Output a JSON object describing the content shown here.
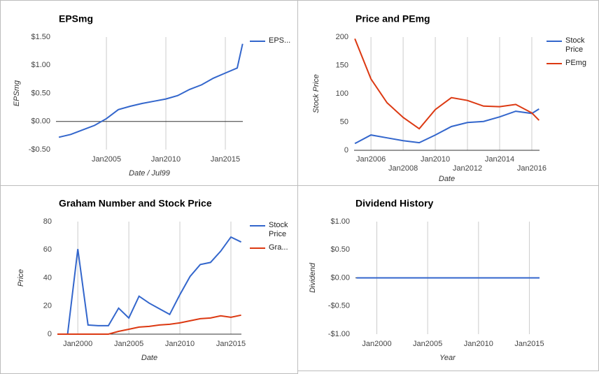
{
  "chart_data": [
    {
      "type": "line",
      "title": "EPSmg",
      "x_label": "Date / Jul99",
      "y_label": "EPSmg",
      "x": [
        2001,
        2002,
        2003,
        2004,
        2005,
        2006,
        2007,
        2008,
        2009,
        2010,
        2011,
        2012,
        2013,
        2014,
        2015,
        2016,
        2016.45
      ],
      "series": [
        {
          "name": "EPS...",
          "color": "#3366cc",
          "values": [
            -0.28,
            -0.23,
            -0.15,
            -0.07,
            0.05,
            0.21,
            0.27,
            0.32,
            0.36,
            0.4,
            0.46,
            0.57,
            0.65,
            0.77,
            0.86,
            0.95,
            1.38
          ]
        }
      ],
      "xlim": [
        2000.76,
        2016.47
      ],
      "ylim": [
        -0.5,
        1.5
      ],
      "xticks": [
        {
          "value": 2005,
          "label": "Jan2005"
        },
        {
          "value": 2010,
          "label": "Jan2010"
        },
        {
          "value": 2015,
          "label": "Jan2015"
        }
      ],
      "yticks": [
        {
          "value": 1.5,
          "label": "$1.50"
        },
        {
          "value": 1.0,
          "label": "$1.00"
        },
        {
          "value": 0.5,
          "label": "$0.50"
        },
        {
          "value": 0,
          "label": "$0.00"
        },
        {
          "value": -0.5,
          "label": "-$0.50"
        }
      ],
      "grid": true
    },
    {
      "type": "line",
      "title": "Price and PEmg",
      "x_label": "Date",
      "y_label": "Stock Price",
      "x": [
        2005,
        2006,
        2007,
        2008,
        2009,
        2010,
        2011,
        2012,
        2013,
        2014,
        2015,
        2016,
        2016.45
      ],
      "series": [
        {
          "name": "Stock Price",
          "color": "#3366cc",
          "values": [
            12,
            27,
            22,
            17,
            13.5,
            27,
            42,
            49,
            51,
            59,
            69,
            65,
            73
          ]
        },
        {
          "name": "PEmg",
          "color": "#dc3912",
          "values": [
            197,
            126,
            84,
            58,
            38,
            72,
            93,
            88,
            78,
            77,
            81,
            66,
            53
          ]
        }
      ],
      "xlim": [
        2004.95,
        2016.48
      ],
      "ylim": [
        0,
        200
      ],
      "xticks": [
        {
          "value": 2006,
          "label": "Jan2006"
        },
        {
          "value": 2008,
          "label": "Jan2008"
        },
        {
          "value": 2010,
          "label": "Jan2010"
        },
        {
          "value": 2012,
          "label": "Jan2012"
        },
        {
          "value": 2014,
          "label": "Jan2014"
        },
        {
          "value": 2016,
          "label": "Jan2016"
        }
      ],
      "yticks": [
        0,
        50,
        100,
        150,
        200
      ],
      "grid": true
    },
    {
      "type": "line",
      "title": "Graham Number and Stock Price",
      "x_label": "Date",
      "y_label": "Price",
      "x": [
        1998,
        1999,
        2000,
        2001,
        2002,
        2003,
        2004,
        2005,
        2006,
        2007,
        2008,
        2009,
        2010,
        2011,
        2012,
        2013,
        2014,
        2015,
        2016
      ],
      "series": [
        {
          "name": "Stock Price",
          "color": "#3366cc",
          "values": [
            0,
            0,
            60.5,
            6.5,
            6,
            6,
            18.5,
            11.5,
            27,
            22,
            18,
            14,
            28,
            41,
            49.5,
            51,
            59,
            69,
            65.5
          ]
        },
        {
          "name": "Gra...",
          "color": "#dc3912",
          "values": [
            0,
            0,
            0,
            0,
            0,
            0,
            2,
            3.5,
            5,
            5.5,
            6.5,
            7,
            8,
            9.5,
            11,
            11.5,
            13,
            12,
            13.5
          ]
        }
      ],
      "xlim": [
        1998,
        2016.03
      ],
      "ylim": [
        0,
        80
      ],
      "xticks": [
        {
          "value": 2000,
          "label": "Jan2000"
        },
        {
          "value": 2005,
          "label": "Jan2005"
        },
        {
          "value": 2010,
          "label": "Jan2010"
        },
        {
          "value": 2015,
          "label": "Jan2015"
        }
      ],
      "yticks": [
        0,
        20,
        40,
        60,
        80
      ],
      "grid": true
    },
    {
      "type": "line",
      "title": "Dividend History",
      "x_label": "Year",
      "y_label": "Dividend",
      "x": [
        1998,
        1999,
        2000,
        2001,
        2002,
        2003,
        2004,
        2005,
        2006,
        2007,
        2008,
        2009,
        2010,
        2011,
        2012,
        2013,
        2014,
        2015,
        2016
      ],
      "series": [
        {
          "color": "#3366cc",
          "values": [
            0,
            0,
            0,
            0,
            0,
            0,
            0,
            0,
            0,
            0,
            0,
            0,
            0,
            0,
            0,
            0,
            0,
            0,
            0
          ]
        }
      ],
      "xlim": [
        1997.9,
        2016
      ],
      "ylim": [
        -1,
        1
      ],
      "xticks": [
        {
          "value": 2000,
          "label": "Jan2000"
        },
        {
          "value": 2005,
          "label": "Jan2005"
        },
        {
          "value": 2010,
          "label": "Jan2010"
        },
        {
          "value": 2015,
          "label": "Jan2015"
        }
      ],
      "yticks": [
        {
          "value": 1,
          "label": "$1.00"
        },
        {
          "value": 0.5,
          "label": "$0.50"
        },
        {
          "value": 0,
          "label": "$0.00"
        },
        {
          "value": -0.5,
          "label": "-$0.50"
        },
        {
          "value": -1,
          "label": "-$1.00"
        }
      ],
      "grid": true
    }
  ]
}
